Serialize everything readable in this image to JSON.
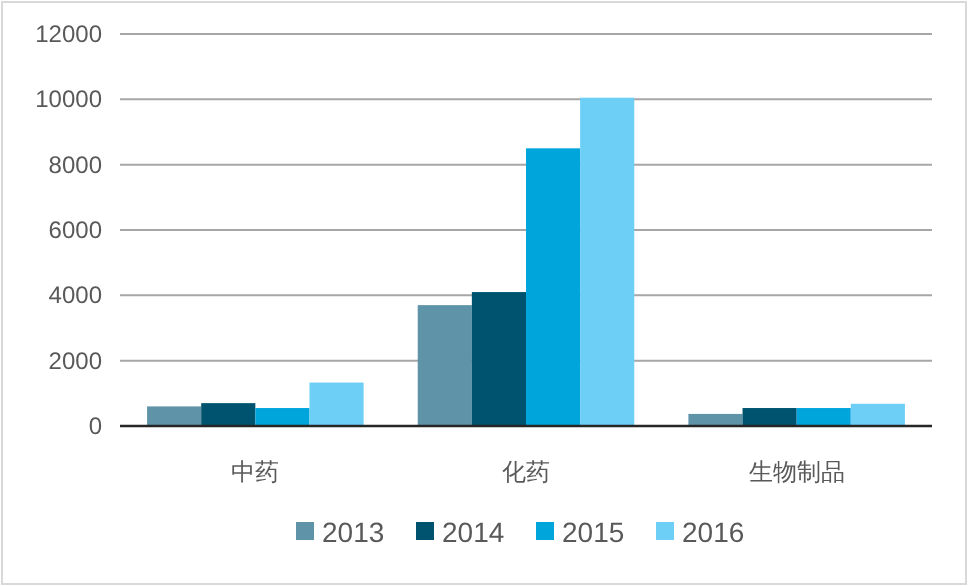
{
  "chart_data": {
    "type": "bar",
    "categories": [
      "中药",
      "化药",
      "生物制品"
    ],
    "series": [
      {
        "name": "2013",
        "color": "#5e93a8",
        "values": [
          600,
          3700,
          370
        ]
      },
      {
        "name": "2014",
        "color": "#00536e",
        "values": [
          700,
          4100,
          550
        ]
      },
      {
        "name": "2015",
        "color": "#00a5dc",
        "values": [
          550,
          8500,
          550
        ]
      },
      {
        "name": "2016",
        "color": "#6dcff6",
        "values": [
          1330,
          10050,
          680
        ]
      }
    ],
    "ylim": [
      0,
      12000
    ],
    "yticks": [
      0,
      2000,
      4000,
      6000,
      8000,
      10000,
      12000
    ],
    "grid": "y",
    "legend": "bottom"
  }
}
